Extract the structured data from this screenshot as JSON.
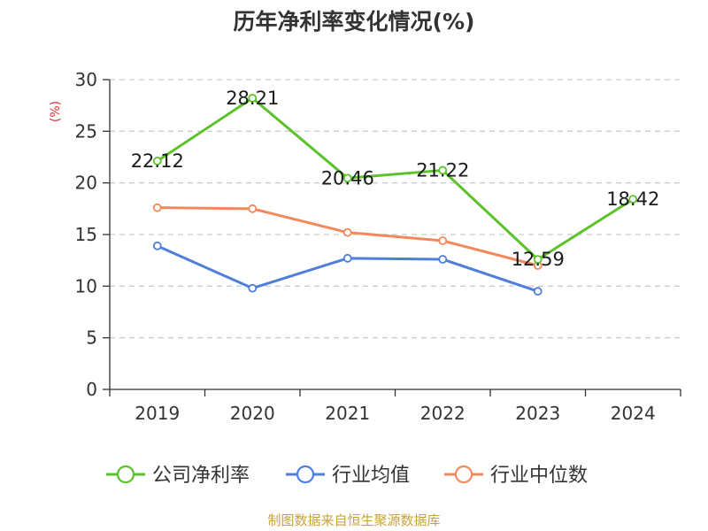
{
  "chart_data": {
    "type": "line",
    "title": "历年净利率变化情况(%)",
    "unit_label": "(%)",
    "categories": [
      "2019",
      "2020",
      "2021",
      "2022",
      "2023",
      "2024"
    ],
    "ylim": [
      0,
      30
    ],
    "yticks": [
      0,
      5,
      10,
      15,
      20,
      25,
      30
    ],
    "grid": true,
    "legend_position": "bottom",
    "series": [
      {
        "name": "公司净利率",
        "color": "#5cc22a",
        "values": [
          22.12,
          28.21,
          20.46,
          21.22,
          12.59,
          18.42
        ],
        "labels": [
          "22.12",
          "28.21",
          "20.46",
          "21.22",
          "12.59",
          "18.42"
        ]
      },
      {
        "name": "行业均值",
        "color": "#4f7fdb",
        "values": [
          13.9,
          9.8,
          12.7,
          12.6,
          9.5,
          null
        ]
      },
      {
        "name": "行业中位数",
        "color": "#f08a5d",
        "values": [
          17.6,
          17.5,
          15.2,
          14.4,
          12.0,
          null
        ]
      }
    ]
  },
  "colors": {
    "unit_label": "#e03030",
    "source": "#c9a23a",
    "axis": "#333333",
    "grid": "#cccccc"
  },
  "source_text": "制图数据来自恒生聚源数据库"
}
